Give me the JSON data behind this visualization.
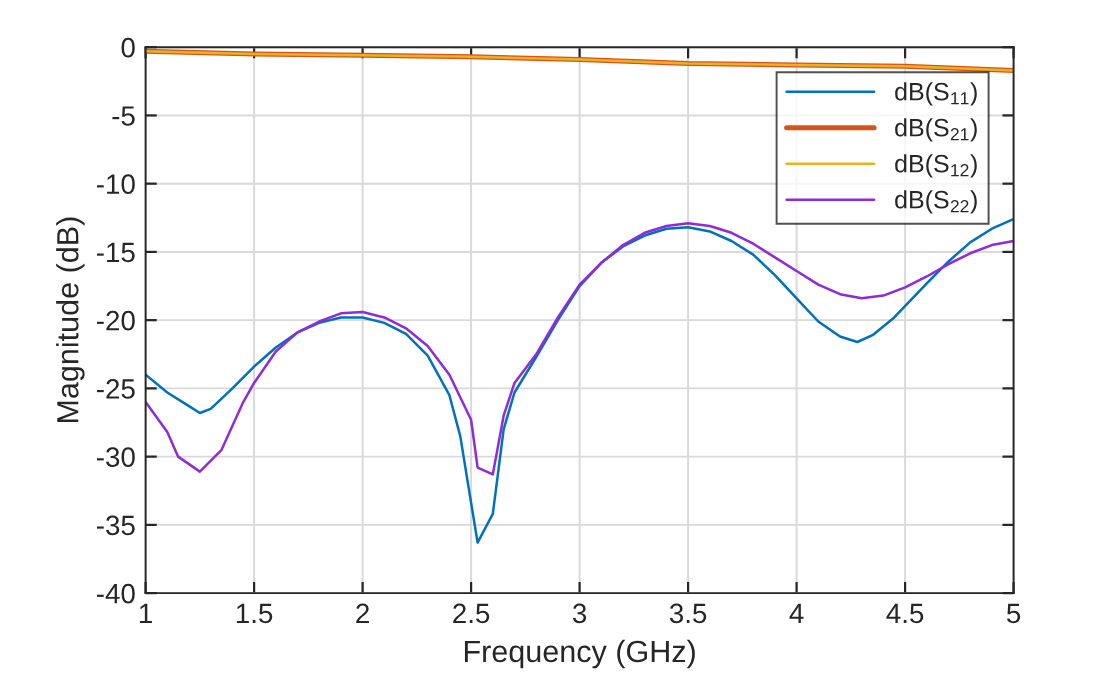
{
  "chart_data": {
    "type": "line",
    "xlabel": "Frequency (GHz)",
    "ylabel": "Magnitude (dB)",
    "xlim": [
      1,
      5
    ],
    "ylim": [
      -40,
      0
    ],
    "xticks": [
      1,
      1.5,
      2,
      2.5,
      3,
      3.5,
      4,
      4.5,
      5
    ],
    "yticks": [
      -40,
      -35,
      -30,
      -25,
      -20,
      -15,
      -10,
      -5,
      0
    ],
    "grid": true,
    "legend": "top right",
    "line_style": "solid",
    "marker": "none",
    "series": [
      {
        "name": "dB(S$_{11}$)",
        "color": "#0072bd",
        "x": [
          1.0,
          1.1,
          1.2,
          1.25,
          1.3,
          1.4,
          1.5,
          1.6,
          1.7,
          1.8,
          1.9,
          2.0,
          2.1,
          2.2,
          2.3,
          2.4,
          2.45,
          2.53,
          2.6,
          2.65,
          2.7,
          2.8,
          2.9,
          3.0,
          3.1,
          3.2,
          3.3,
          3.4,
          3.5,
          3.6,
          3.7,
          3.8,
          3.9,
          4.0,
          4.1,
          4.2,
          4.28,
          4.35,
          4.45,
          4.6,
          4.7,
          4.8,
          4.9,
          5.0
        ],
        "values": [
          -24.0,
          -25.3,
          -26.3,
          -26.8,
          -26.5,
          -25.0,
          -23.4,
          -22.0,
          -20.9,
          -20.2,
          -19.8,
          -19.8,
          -20.2,
          -21.0,
          -22.6,
          -25.5,
          -28.5,
          -36.3,
          -34.2,
          -28.0,
          -25.3,
          -22.7,
          -20.0,
          -17.5,
          -15.8,
          -14.6,
          -13.8,
          -13.3,
          -13.2,
          -13.5,
          -14.2,
          -15.2,
          -16.7,
          -18.4,
          -20.1,
          -21.2,
          -21.6,
          -21.1,
          -19.8,
          -17.3,
          -15.7,
          -14.3,
          -13.3,
          -12.6
        ]
      },
      {
        "name": "dB(S$_{21}$)",
        "color": "#d95319",
        "x": [
          1.0,
          1.5,
          2.0,
          2.5,
          3.0,
          3.5,
          4.0,
          4.5,
          5.0
        ],
        "values": [
          -0.3,
          -0.5,
          -0.6,
          -0.7,
          -0.9,
          -1.2,
          -1.3,
          -1.4,
          -1.7
        ]
      },
      {
        "name": "dB(S$_{12}$)",
        "color": "#edb120",
        "x": [
          1.0,
          1.5,
          2.0,
          2.5,
          3.0,
          3.5,
          4.0,
          4.5,
          5.0
        ],
        "values": [
          -0.3,
          -0.5,
          -0.6,
          -0.7,
          -0.9,
          -1.2,
          -1.3,
          -1.4,
          -1.7
        ]
      },
      {
        "name": "dB(S$_{22}$)",
        "color": "#8f2bd9",
        "x": [
          1.0,
          1.1,
          1.15,
          1.25,
          1.35,
          1.45,
          1.5,
          1.6,
          1.7,
          1.8,
          1.9,
          2.0,
          2.1,
          2.2,
          2.3,
          2.4,
          2.5,
          2.53,
          2.6,
          2.65,
          2.7,
          2.8,
          2.9,
          3.0,
          3.1,
          3.2,
          3.3,
          3.4,
          3.5,
          3.6,
          3.7,
          3.8,
          3.9,
          4.0,
          4.1,
          4.2,
          4.3,
          4.4,
          4.5,
          4.6,
          4.7,
          4.8,
          4.9,
          5.0
        ],
        "values": [
          -26.0,
          -28.2,
          -30.0,
          -31.1,
          -29.5,
          -26.0,
          -24.6,
          -22.3,
          -20.9,
          -20.1,
          -19.5,
          -19.4,
          -19.8,
          -20.6,
          -21.9,
          -24.0,
          -27.3,
          -30.8,
          -31.3,
          -27.0,
          -24.6,
          -22.5,
          -19.8,
          -17.4,
          -15.8,
          -14.5,
          -13.6,
          -13.1,
          -12.9,
          -13.1,
          -13.6,
          -14.4,
          -15.4,
          -16.4,
          -17.4,
          -18.1,
          -18.4,
          -18.2,
          -17.6,
          -16.8,
          -15.9,
          -15.1,
          -14.5,
          -14.2
        ]
      }
    ]
  }
}
